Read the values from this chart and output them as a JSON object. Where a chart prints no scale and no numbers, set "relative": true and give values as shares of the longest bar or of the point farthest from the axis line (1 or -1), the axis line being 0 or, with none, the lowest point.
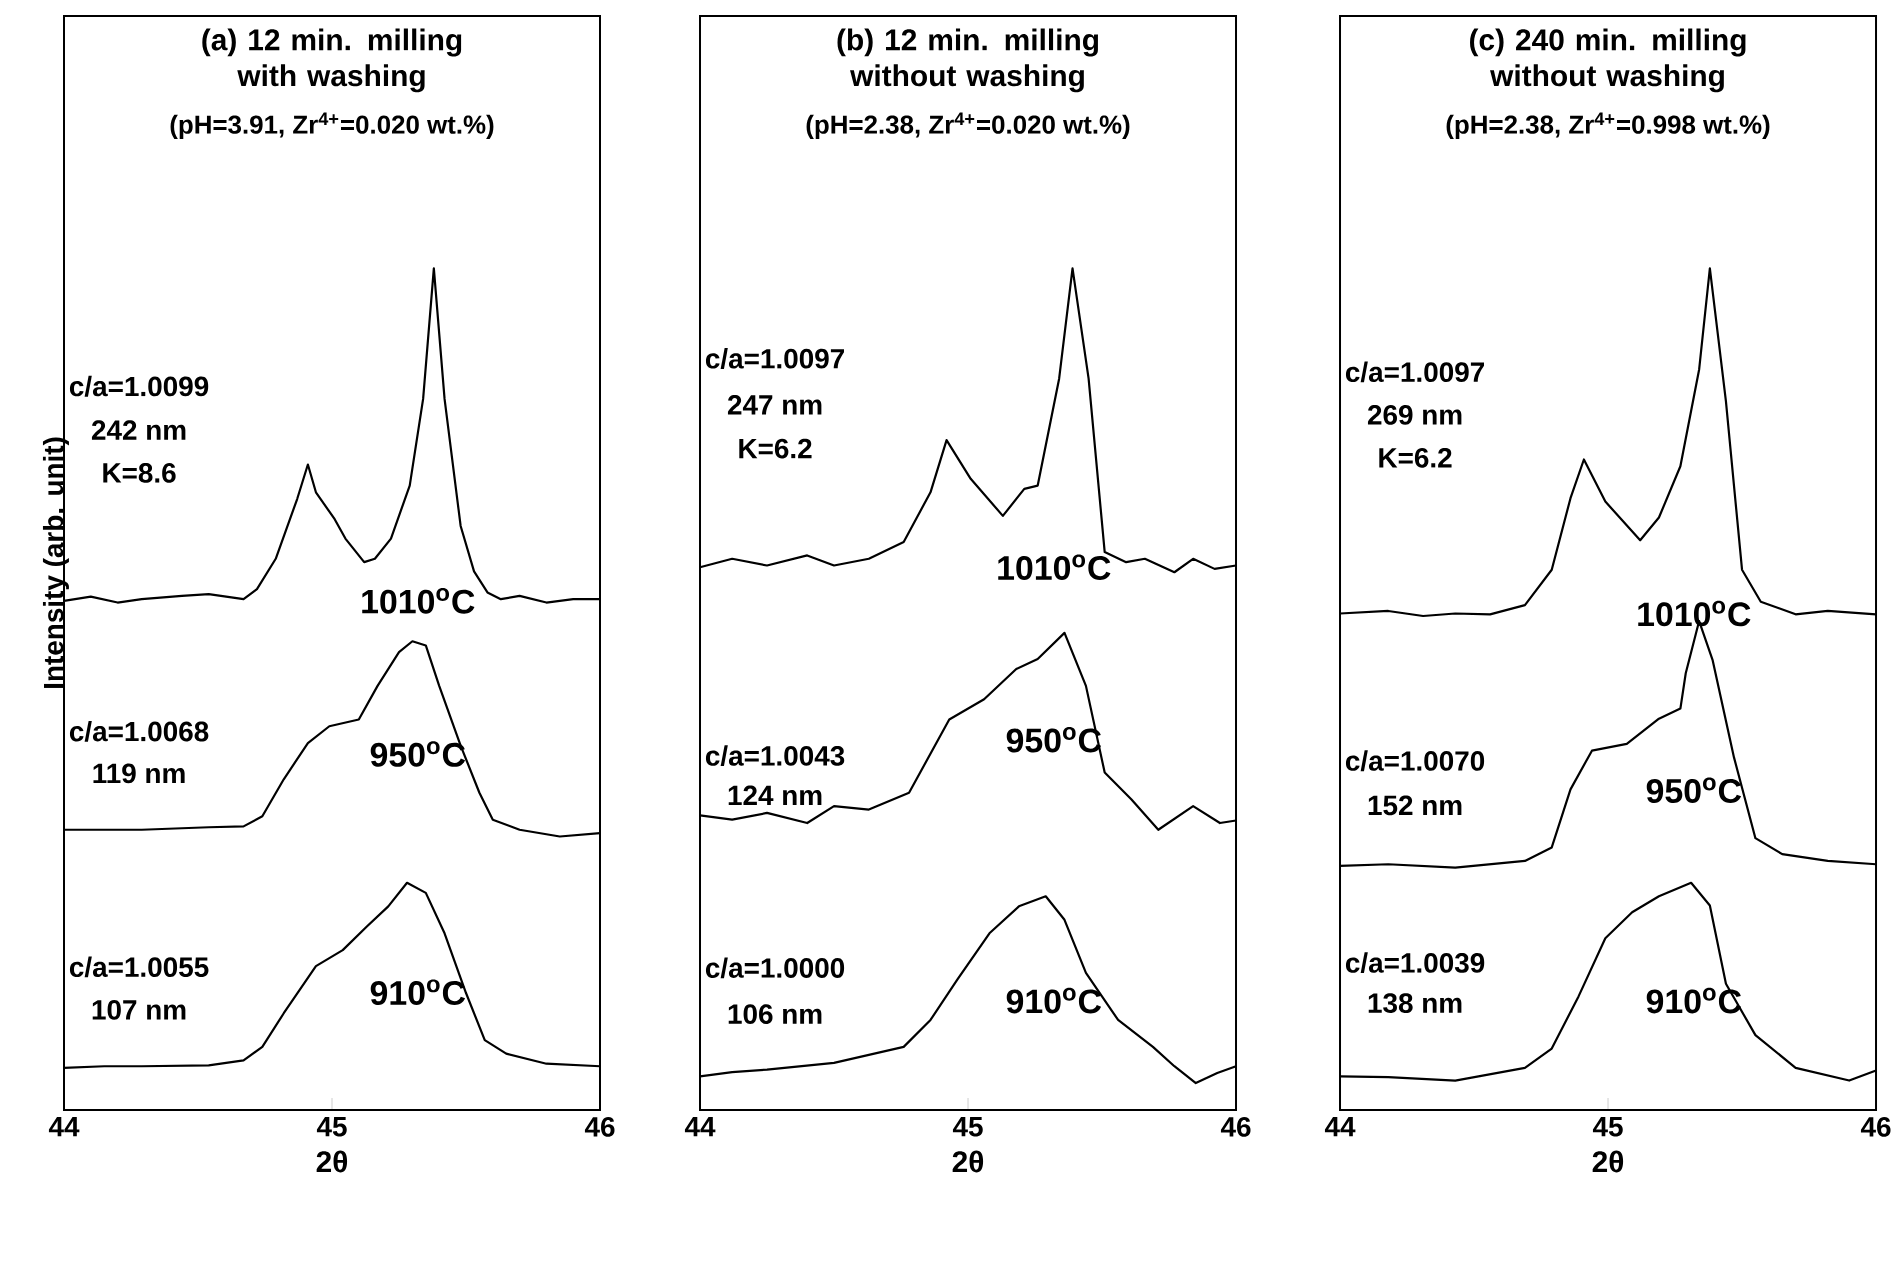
{
  "chart_data": [
    {
      "type": "line",
      "relative": true,
      "title": "(a) 12 min. milling with washing",
      "subtitle": "(pH=3.91, Zr$^{4+}$=0.020 wt.%)",
      "xlabel": "2θ",
      "ylabel": "Intensity (arb. unit)",
      "xlim": [
        44,
        46
      ],
      "xticks": [
        44,
        45,
        46
      ],
      "tick_labels": "x",
      "series": [
        {
          "name": "1010$^{o}$C",
          "color": "#000000",
          "x": [
            44.0,
            44.1,
            44.2,
            44.29,
            44.44,
            44.54,
            44.67,
            44.72,
            44.79,
            44.87,
            44.91,
            44.94,
            45.01,
            45.05,
            45.12,
            45.16,
            45.22,
            45.29,
            45.34,
            45.38,
            45.42,
            45.48,
            45.53,
            45.58,
            45.63,
            45.7,
            45.8,
            45.9,
            46.0
          ],
          "values": [
            0.605,
            0.61,
            0.603,
            0.607,
            0.611,
            0.613,
            0.607,
            0.619,
            0.655,
            0.726,
            0.767,
            0.734,
            0.702,
            0.679,
            0.651,
            0.655,
            0.679,
            0.742,
            0.845,
            1.0,
            0.845,
            0.694,
            0.64,
            0.615,
            0.607,
            0.611,
            0.603,
            0.607,
            0.607
          ]
        },
        {
          "name": "950$^{o}$C",
          "color": "#000000",
          "x": [
            44.0,
            44.15,
            44.29,
            44.54,
            44.67,
            44.74,
            44.82,
            44.91,
            44.99,
            45.1,
            45.17,
            45.25,
            45.3,
            45.35,
            45.4,
            45.48,
            45.55,
            45.6,
            45.7,
            45.85,
            46.0
          ],
          "values": [
            0.333,
            0.333,
            0.333,
            0.336,
            0.337,
            0.349,
            0.393,
            0.436,
            0.456,
            0.464,
            0.504,
            0.544,
            0.557,
            0.552,
            0.504,
            0.433,
            0.377,
            0.345,
            0.333,
            0.325,
            0.329
          ]
        },
        {
          "name": "910$^{o}$C",
          "color": "#000000",
          "x": [
            44.0,
            44.15,
            44.29,
            44.54,
            44.67,
            44.74,
            44.82,
            44.94,
            45.04,
            45.13,
            45.21,
            45.28,
            45.35,
            45.42,
            45.5,
            45.57,
            45.65,
            45.8,
            46.0
          ],
          "values": [
            0.05,
            0.052,
            0.052,
            0.053,
            0.059,
            0.075,
            0.115,
            0.171,
            0.19,
            0.218,
            0.242,
            0.27,
            0.258,
            0.21,
            0.139,
            0.083,
            0.067,
            0.055,
            0.052
          ]
        }
      ],
      "annotations": [
        "c/a=1.0099",
        "242 nm",
        "K=8.6",
        "c/a=1.0068",
        "119 nm",
        "c/a=1.0055",
        "107 nm"
      ]
    },
    {
      "type": "line",
      "relative": true,
      "title": "(b) 12 min. milling without washing",
      "subtitle": "(pH=2.38, Zr$^{4+}$=0.020 wt.%)",
      "xlabel": "2θ",
      "xlim": [
        44,
        46
      ],
      "xticks": [
        44,
        45,
        46
      ],
      "tick_labels": "x",
      "series": [
        {
          "name": "1010$^{o}$C",
          "color": "#000000",
          "x": [
            44.0,
            44.12,
            44.25,
            44.4,
            44.5,
            44.63,
            44.76,
            44.86,
            44.92,
            45.01,
            45.13,
            45.21,
            45.26,
            45.34,
            45.39,
            45.45,
            45.51,
            45.59,
            45.66,
            45.77,
            45.84,
            45.92,
            46.0
          ],
          "values": [
            0.645,
            0.655,
            0.647,
            0.659,
            0.647,
            0.655,
            0.675,
            0.734,
            0.796,
            0.75,
            0.706,
            0.738,
            0.742,
            0.869,
            1.0,
            0.869,
            0.663,
            0.651,
            0.655,
            0.639,
            0.655,
            0.643,
            0.647
          ]
        },
        {
          "name": "950$^{o}$C",
          "color": "#000000",
          "x": [
            44.0,
            44.12,
            44.25,
            44.4,
            44.5,
            44.63,
            44.78,
            44.93,
            45.06,
            45.18,
            45.26,
            45.36,
            45.44,
            45.51,
            45.61,
            45.71,
            45.84,
            45.94,
            46.0
          ],
          "values": [
            0.35,
            0.345,
            0.353,
            0.341,
            0.361,
            0.357,
            0.377,
            0.464,
            0.488,
            0.524,
            0.536,
            0.567,
            0.504,
            0.401,
            0.369,
            0.333,
            0.361,
            0.341,
            0.344
          ]
        },
        {
          "name": "910$^{o}$C",
          "color": "#000000",
          "x": [
            44.0,
            44.12,
            44.25,
            44.5,
            44.76,
            44.86,
            44.96,
            45.08,
            45.19,
            45.29,
            45.36,
            45.44,
            45.56,
            45.69,
            45.77,
            45.85,
            45.93,
            46.0
          ],
          "values": [
            0.04,
            0.045,
            0.048,
            0.056,
            0.075,
            0.107,
            0.155,
            0.21,
            0.242,
            0.254,
            0.226,
            0.163,
            0.107,
            0.075,
            0.052,
            0.032,
            0.044,
            0.052
          ]
        }
      ],
      "annotations": [
        "c/a=1.0097",
        "247 nm",
        "K=6.2",
        "c/a=1.0043",
        "124 nm",
        "c/a=1.0000",
        "106 nm"
      ]
    },
    {
      "type": "line",
      "relative": true,
      "title": "(c) 240 min. milling without washing",
      "subtitle": "(pH=2.38, Zr$^{4+}$=0.998 wt.%)",
      "xlabel": "2θ",
      "xlim": [
        44,
        46
      ],
      "xticks": [
        44,
        45,
        46
      ],
      "tick_labels": "x",
      "series": [
        {
          "name": "1010$^{o}$C",
          "color": "#000000",
          "x": [
            44.0,
            44.18,
            44.31,
            44.43,
            44.56,
            44.69,
            44.79,
            44.86,
            44.91,
            44.99,
            45.12,
            45.19,
            45.27,
            45.34,
            45.38,
            45.44,
            45.5,
            45.57,
            45.7,
            45.82,
            46.0
          ],
          "values": [
            0.59,
            0.593,
            0.587,
            0.59,
            0.589,
            0.6,
            0.642,
            0.727,
            0.773,
            0.723,
            0.677,
            0.704,
            0.765,
            0.88,
            1.0,
            0.842,
            0.642,
            0.604,
            0.589,
            0.593,
            0.589
          ]
        },
        {
          "name": "950$^{o}$C",
          "color": "#000000",
          "x": [
            44.0,
            44.18,
            44.43,
            44.69,
            44.79,
            44.86,
            44.94,
            45.07,
            45.19,
            45.27,
            45.29,
            45.34,
            45.39,
            45.47,
            45.55,
            45.65,
            45.82,
            46.0
          ],
          "values": [
            0.29,
            0.292,
            0.288,
            0.296,
            0.312,
            0.381,
            0.427,
            0.435,
            0.465,
            0.477,
            0.519,
            0.581,
            0.535,
            0.419,
            0.323,
            0.304,
            0.296,
            0.292
          ]
        },
        {
          "name": "910$^{o}$C",
          "color": "#000000",
          "x": [
            44.0,
            44.18,
            44.43,
            44.69,
            44.79,
            44.89,
            44.99,
            45.09,
            45.19,
            45.31,
            45.38,
            45.44,
            45.55,
            45.7,
            45.9,
            46.0
          ],
          "values": [
            0.04,
            0.039,
            0.035,
            0.05,
            0.073,
            0.135,
            0.204,
            0.235,
            0.254,
            0.27,
            0.243,
            0.15,
            0.089,
            0.05,
            0.035,
            0.047
          ]
        }
      ],
      "annotations": [
        "c/a=1.0097",
        "269 nm",
        "K=6.2",
        "c/a=1.0070",
        "152 nm",
        "c/a=1.0039",
        "138 nm"
      ]
    }
  ]
}
